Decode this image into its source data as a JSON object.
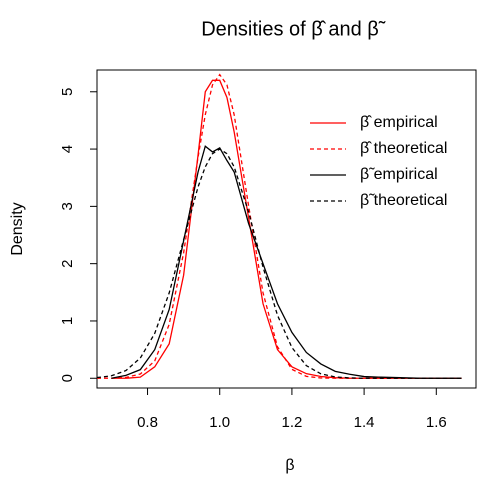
{
  "chart_data": {
    "type": "line",
    "title": "Densities of β̂ and β̃",
    "x_label": "β",
    "y_label": "Density",
    "x": [
      0.66,
      0.7,
      0.74,
      0.78,
      0.82,
      0.86,
      0.9,
      0.94,
      0.96,
      0.98,
      1.0,
      1.02,
      1.04,
      1.08,
      1.12,
      1.16,
      1.2,
      1.24,
      1.28,
      1.32,
      1.36,
      1.4,
      1.44,
      1.5,
      1.56,
      1.62,
      1.67
    ],
    "series": [
      {
        "name": "β̂ empirical",
        "color": "#ff0000",
        "dash": false,
        "values": [
          null,
          0,
          0,
          0.02,
          0.2,
          0.6,
          1.8,
          3.9,
          5.0,
          5.2,
          5.2,
          4.9,
          4.3,
          2.8,
          1.3,
          0.5,
          0.2,
          0.08,
          0.03,
          0.01,
          0,
          0,
          0,
          0,
          0,
          0,
          0
        ]
      },
      {
        "name": "β̂ theoretical",
        "color": "#ff0000",
        "dash": true,
        "values": [
          0,
          0.002,
          0.014,
          0.074,
          0.303,
          0.94,
          2.19,
          3.86,
          4.6,
          5.12,
          5.3,
          5.12,
          4.6,
          3.01,
          1.49,
          0.55,
          0.156,
          0.033,
          0.005,
          0.001,
          0,
          0,
          0,
          0,
          0,
          0,
          0
        ]
      },
      {
        "name": "β̃ empirical",
        "color": "#000000",
        "dash": false,
        "values": [
          null,
          0,
          0.05,
          0.15,
          0.5,
          1.2,
          2.4,
          3.6,
          4.05,
          3.95,
          4.02,
          3.8,
          3.6,
          2.7,
          2.0,
          1.3,
          0.8,
          0.45,
          0.25,
          0.12,
          0.07,
          0.03,
          0.02,
          0.01,
          0,
          0,
          0
        ]
      },
      {
        "name": "β̃ theoretical",
        "color": "#000000",
        "dash": true,
        "values": [
          0.012,
          0.043,
          0.134,
          0.352,
          0.784,
          1.49,
          2.42,
          3.34,
          3.69,
          3.92,
          4.0,
          3.92,
          3.69,
          2.9,
          1.94,
          1.1,
          0.536,
          0.22,
          0.078,
          0.023,
          0.006,
          0.001,
          0,
          0,
          0,
          0,
          0
        ]
      }
    ],
    "xlim": [
      0.66,
      1.71
    ],
    "ylim": [
      -0.17,
      5.38
    ],
    "xticks": [
      0.8,
      {
        "value": 1,
        "label": "1.0"
      },
      1.2,
      1.4,
      1.6
    ],
    "yticks": [
      0,
      1,
      2,
      3,
      4,
      5
    ],
    "legend": "topright"
  }
}
